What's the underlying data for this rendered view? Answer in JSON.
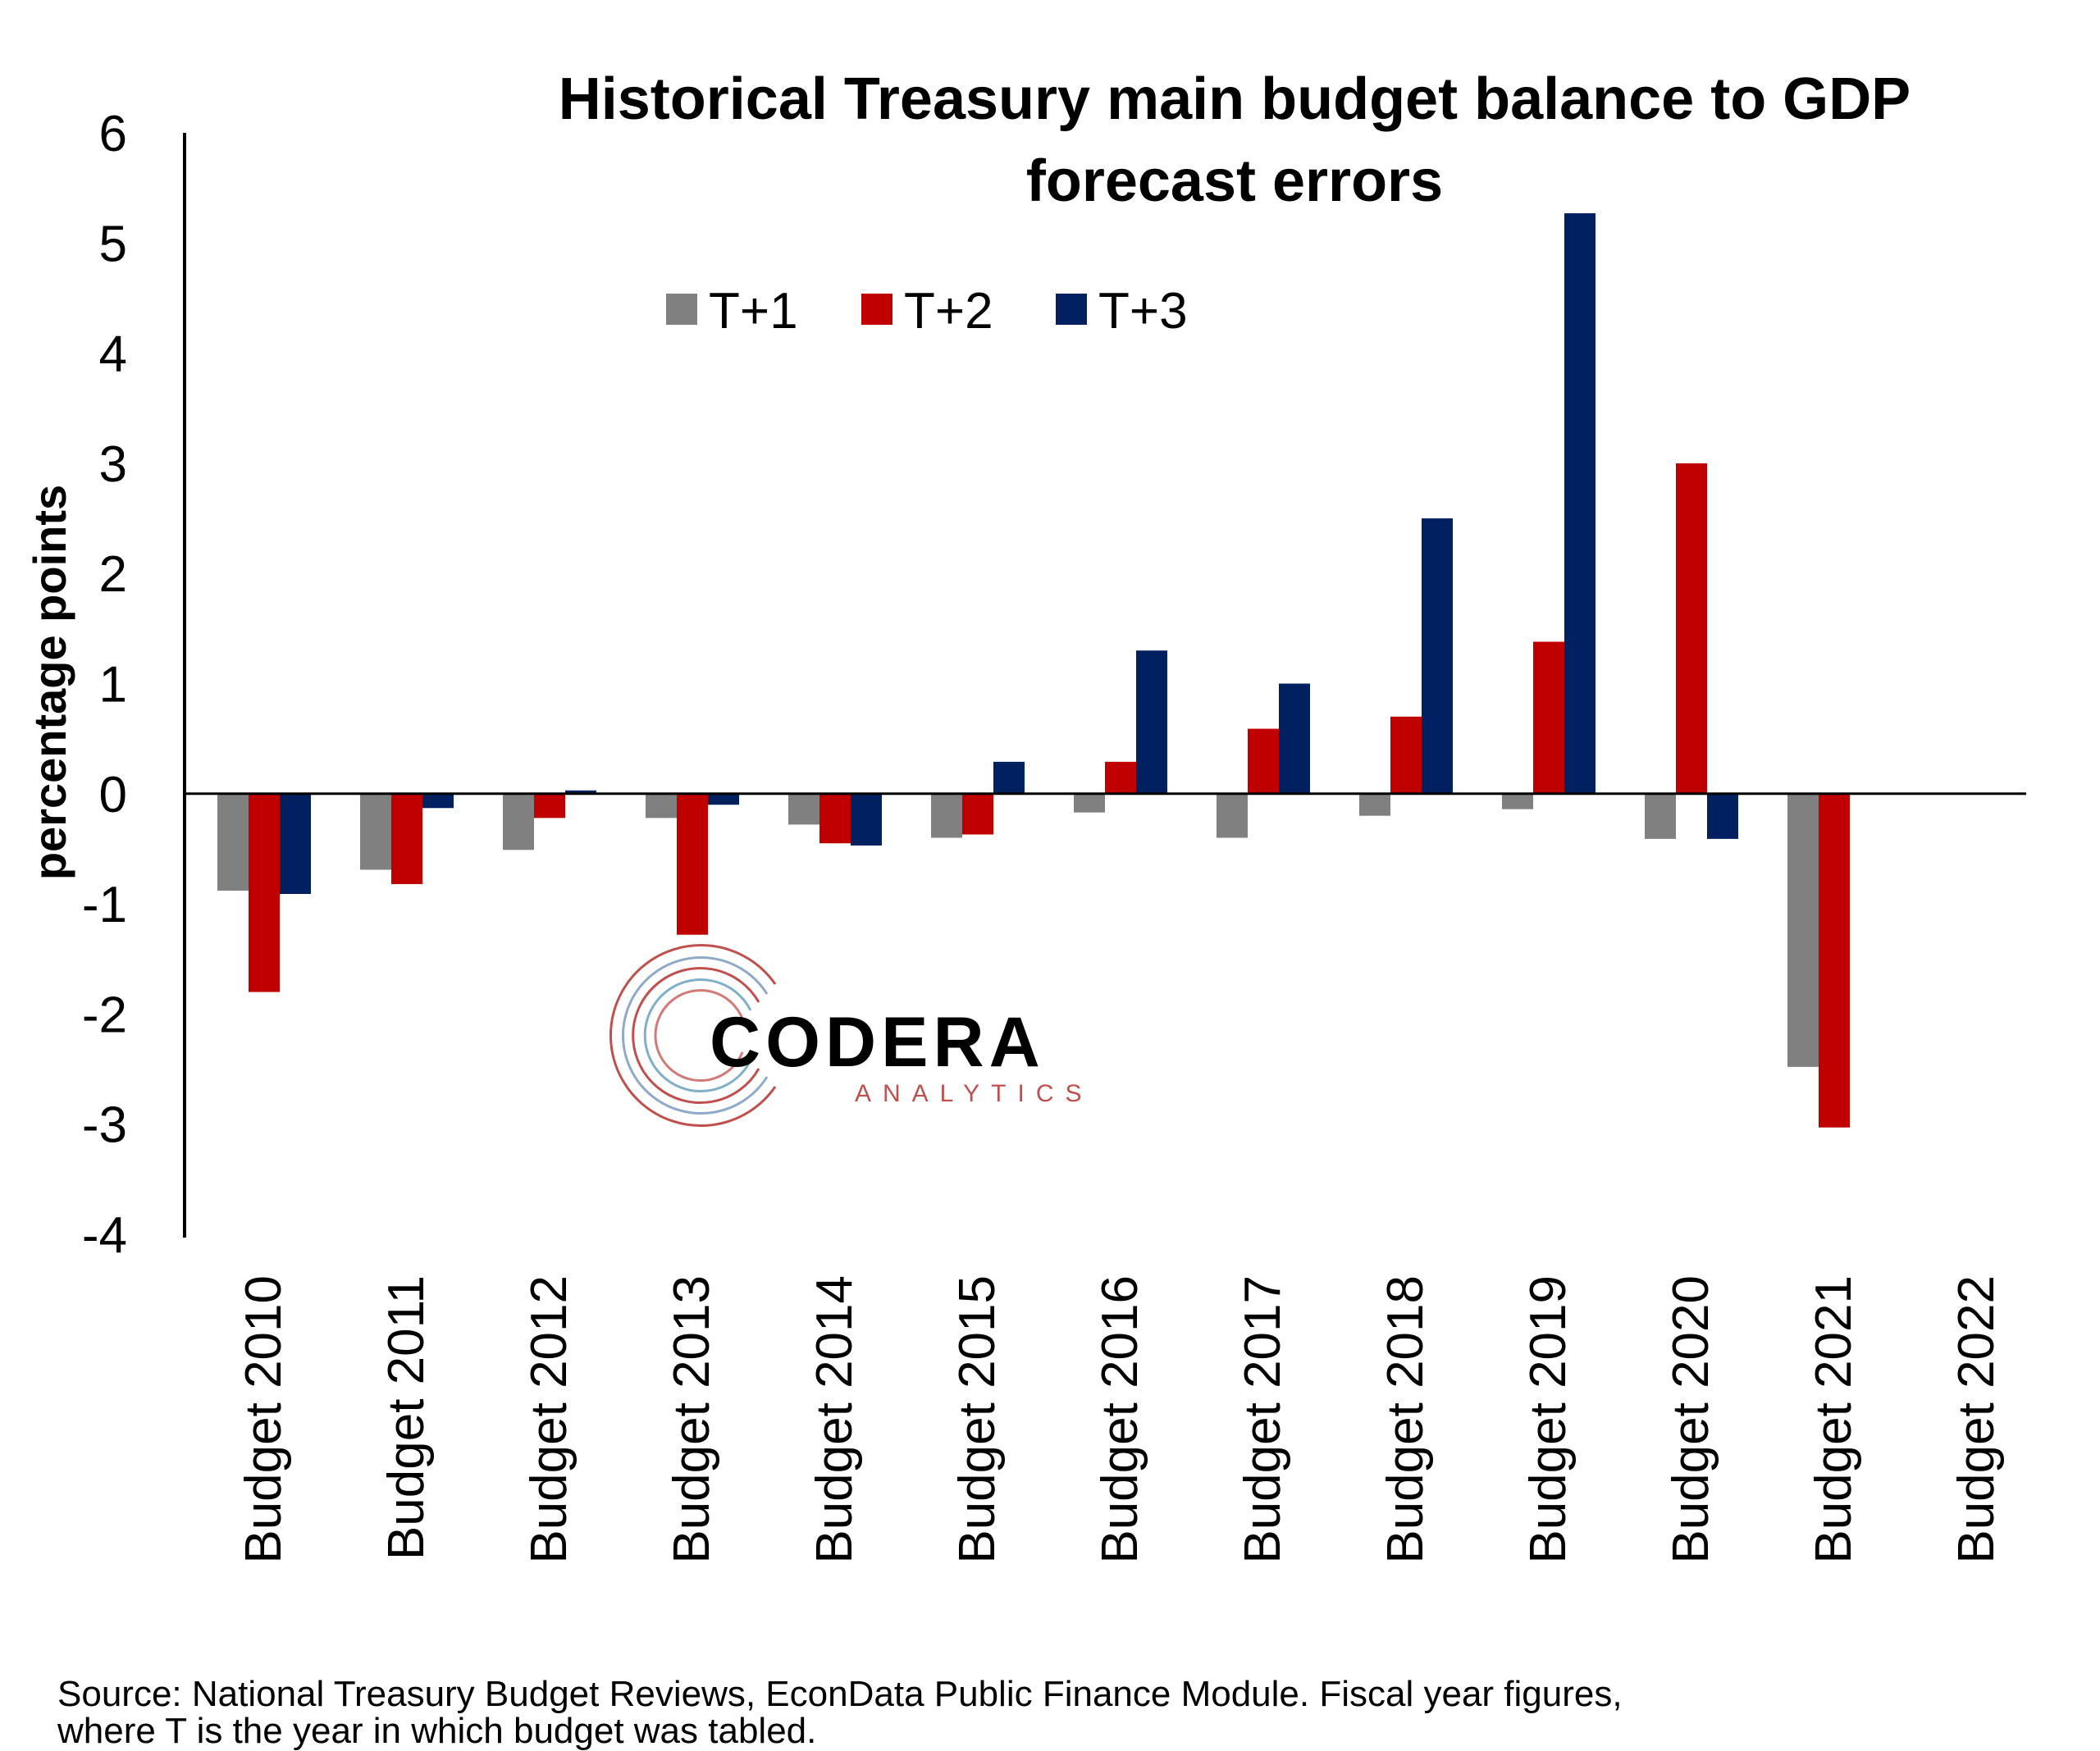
{
  "chart_data": {
    "type": "bar",
    "title_lines": [
      "Historical Treasury main budget balance to GDP",
      "forecast errors"
    ],
    "ylabel": "percentage points",
    "xlabel": "",
    "ylim": [
      -4,
      6
    ],
    "yticks": [
      "6",
      "5",
      "4",
      "3",
      "2",
      "1",
      "0",
      "-1",
      "-2",
      "-3",
      "-4"
    ],
    "categories": [
      "Budget 2010",
      "Budget 2011",
      "Budget 2012",
      "Budget 2013",
      "Budget 2014",
      "Budget 2015",
      "Budget 2016",
      "Budget 2017",
      "Budget 2018",
      "Budget 2019",
      "Budget 2020",
      "Budget 2021",
      "Budget 2022"
    ],
    "series": [
      {
        "name": "T+1",
        "color": "#808080",
        "values": [
          -0.88,
          -0.69,
          -0.51,
          -0.22,
          -0.28,
          -0.4,
          -0.17,
          -0.4,
          -0.2,
          -0.14,
          -0.41,
          -2.48,
          null
        ]
      },
      {
        "name": "T+2",
        "color": "#C00000",
        "values": [
          -1.8,
          -0.82,
          -0.22,
          -1.28,
          -0.45,
          -0.37,
          0.29,
          0.59,
          0.7,
          1.38,
          3.0,
          -3.03,
          null
        ]
      },
      {
        "name": "T+3",
        "color": "#002060",
        "values": [
          -0.91,
          -0.13,
          0.03,
          -0.1,
          -0.47,
          0.29,
          1.3,
          1.0,
          2.5,
          5.27,
          -0.41,
          null,
          null
        ]
      }
    ],
    "legend_position": "top",
    "grid": false
  },
  "logo": {
    "main": "CODERA",
    "sub": "ANALYTICS"
  },
  "source_lines": [
    "Source: National Treasury Budget Reviews, EconData Public Finance Module. Fiscal year figures,",
    "where T is the year in which budget was tabled."
  ]
}
